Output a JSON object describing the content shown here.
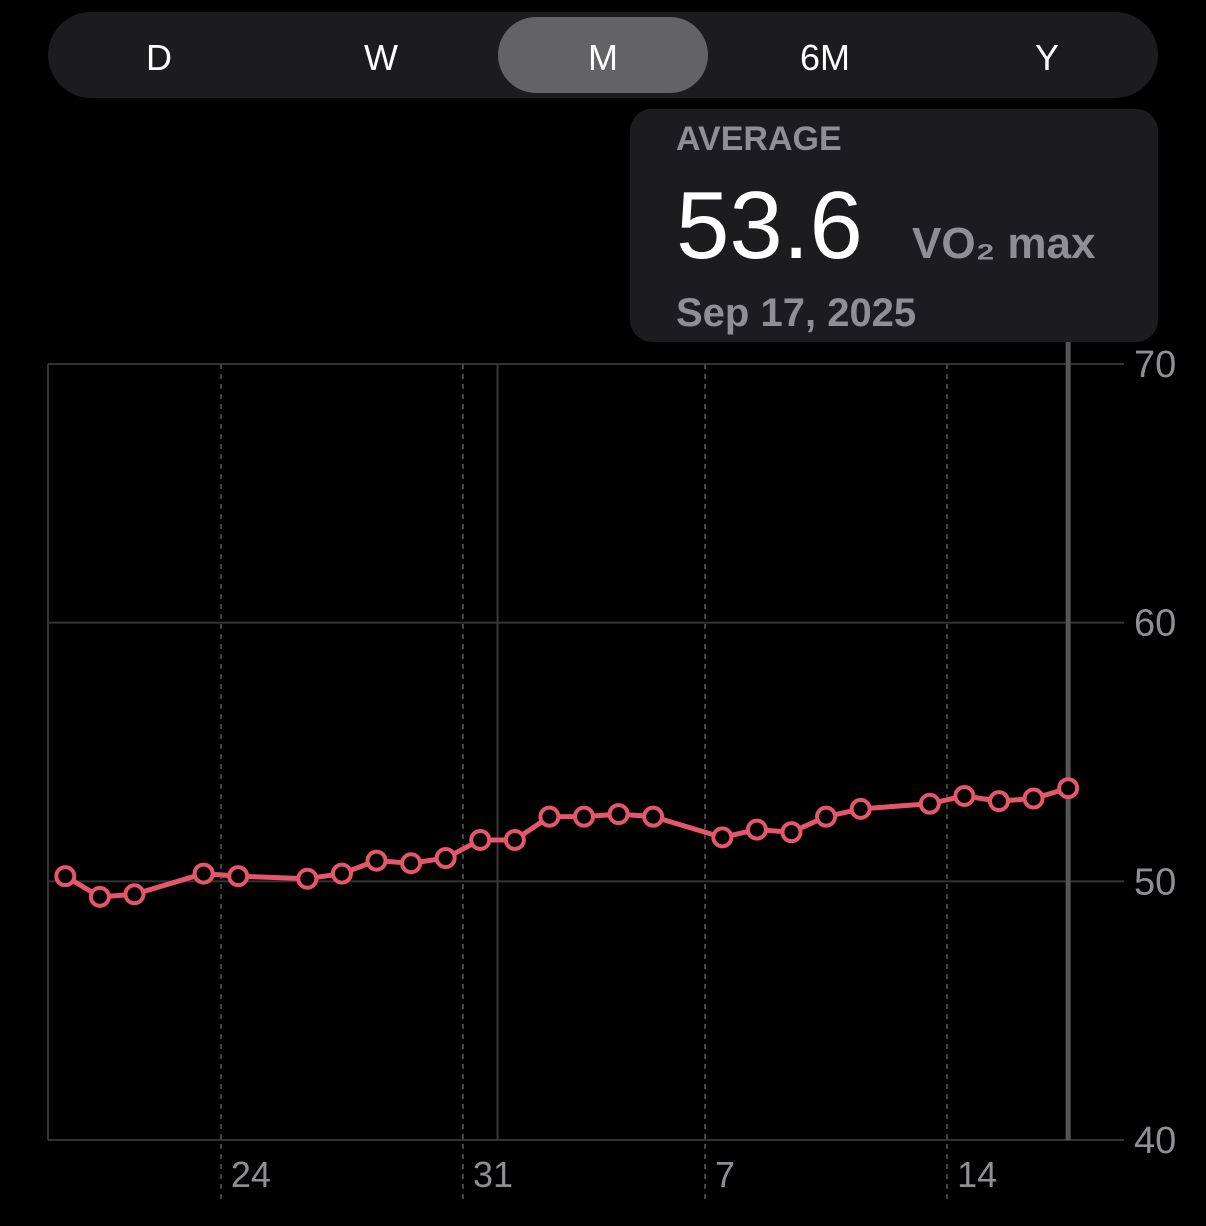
{
  "segments": {
    "items": [
      "D",
      "W",
      "M",
      "6M",
      "Y"
    ],
    "selected": 2
  },
  "callout": {
    "label": "AVERAGE",
    "value": "53.6",
    "unit": "VO₂ max",
    "date": "Sep 17, 2025"
  },
  "chart_data": {
    "type": "line",
    "color": "#e5566a",
    "grid": true,
    "selected": "2025-09-17",
    "x": [
      "2025-08-19",
      "2025-08-20",
      "2025-08-21",
      "2025-08-23",
      "2025-08-24",
      "2025-08-26",
      "2025-08-27",
      "2025-08-28",
      "2025-08-29",
      "2025-08-30",
      "2025-08-31",
      "2025-09-01",
      "2025-09-02",
      "2025-09-03",
      "2025-09-04",
      "2025-09-05",
      "2025-09-07",
      "2025-09-08",
      "2025-09-09",
      "2025-09-10",
      "2025-09-11",
      "2025-09-13",
      "2025-09-14",
      "2025-09-15",
      "2025-09-16",
      "2025-09-17"
    ],
    "values": [
      50.2,
      49.4,
      49.5,
      50.3,
      50.2,
      50.1,
      50.3,
      50.8,
      50.7,
      50.9,
      51.6,
      51.6,
      52.5,
      52.5,
      52.6,
      52.5,
      51.7,
      52.0,
      51.9,
      52.5,
      52.8,
      53.0,
      53.3,
      53.1,
      53.2,
      53.6
    ],
    "xlim": [
      "2025-08-19",
      "2025-09-19"
    ],
    "xticks": [
      {
        "value": "2025-08-24",
        "label": "24"
      },
      {
        "value": "2025-08-31",
        "label": "31"
      },
      {
        "value": "2025-09-07",
        "label": "7"
      },
      {
        "value": "2025-09-14",
        "label": "14"
      }
    ],
    "ylim": [
      40,
      70
    ],
    "yticks": [
      40,
      50,
      60,
      70
    ]
  }
}
